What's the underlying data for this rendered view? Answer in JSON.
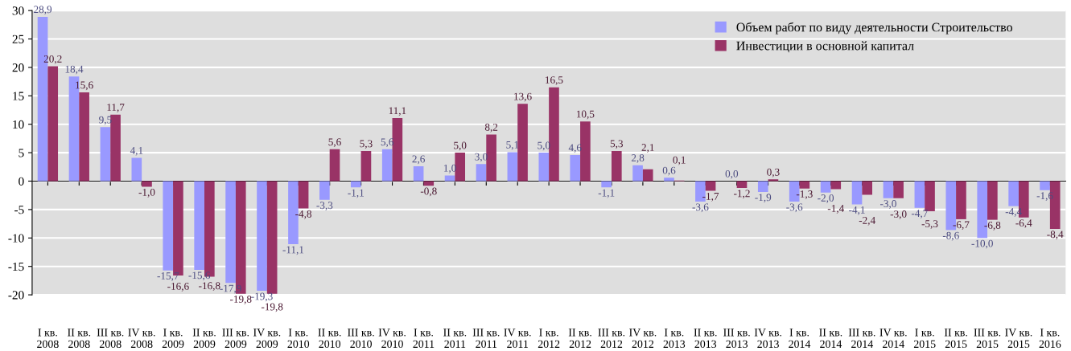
{
  "chart_data": {
    "type": "bar",
    "categories": [
      "I кв.\n2008",
      "II кв.\n2008",
      "III кв.\n2008",
      "IV кв.\n2008",
      "I кв.\n2009",
      "II кв.\n2009",
      "III кв.\n2009",
      "IV кв.\n2009",
      "I кв.\n2010",
      "II кв.\n2010",
      "III кв.\n2010",
      "IV кв.\n2010",
      "I кв.\n2011",
      "II кв.\n2011",
      "III кв.\n2011",
      "IV кв.\n2011",
      "I кв.\n2012",
      "II кв.\n2012",
      "III кв.\n2012",
      "IV кв.\n2012",
      "I кв.\n2013",
      "II кв.\n2013",
      "III кв.\n2013",
      "IV кв.\n2013",
      "I кв.\n2014",
      "II кв.\n2014",
      "III кв.\n2014",
      "IV кв.\n2014",
      "I кв.\n2015",
      "II кв.\n2015",
      "III кв.\n2015",
      "IV кв.\n2015",
      "I кв.\n2016"
    ],
    "series": [
      {
        "name": "Объем работ по виду деятельности Строительство",
        "color": "#9999ff",
        "values": [
          28.9,
          18.4,
          9.5,
          4.1,
          -15.7,
          -15.6,
          -17.9,
          -19.3,
          -11.1,
          -3.3,
          -1.1,
          5.6,
          2.6,
          1.0,
          3.0,
          5.1,
          5.0,
          4.6,
          -1.1,
          2.8,
          0.6,
          -3.6,
          0.0,
          -1.9,
          -3.6,
          -2.0,
          -4.1,
          -3.0,
          -4.7,
          -8.6,
          -10.0,
          -4.4,
          -1.6
        ],
        "value_labels": [
          "28,9",
          "18,4",
          "9,5",
          "4,1",
          "-15,7",
          "-15,6",
          "-17,9",
          "-19,3",
          "-11,1",
          "-3,3",
          "-1,1",
          "5,6",
          "2,6",
          "1,0",
          "3,0",
          "5,1",
          "5,0",
          "4,6",
          "-1,1",
          "2,8",
          "0,6",
          "-3,6",
          "0,0",
          "-1,9",
          "-3,6",
          "-2,0",
          "-4,1",
          "-3,0",
          "-4,7",
          "-8,6",
          "-10,0",
          "-4,4",
          "-1,6"
        ]
      },
      {
        "name": "Инвестиции в основной капитал",
        "color": "#993366",
        "values": [
          20.2,
          15.6,
          11.7,
          -1.0,
          -16.6,
          -16.8,
          -19.8,
          -19.8,
          -4.8,
          5.6,
          5.3,
          11.1,
          -0.8,
          5.0,
          8.2,
          13.6,
          16.5,
          10.5,
          5.3,
          2.1,
          0.1,
          -1.7,
          -1.2,
          0.3,
          -1.3,
          -1.4,
          -2.4,
          -3.0,
          -5.3,
          -6.7,
          -6.8,
          -6.4,
          -8.4
        ],
        "value_labels": [
          "20,2",
          "15,6",
          "11,7",
          "-1,0",
          "-16,6",
          "-16,8",
          "-19,8",
          "-19,8",
          "-4,8",
          "5,6",
          "5,3",
          "11,1",
          "-0,8",
          "5,0",
          "8,2",
          "13,6",
          "16,5",
          "10,5",
          "5,3",
          "2,1",
          "0,1",
          "-1,7",
          "-1,2",
          "0,3",
          "-1,3",
          "-1,4",
          "-2,4",
          "-3,0",
          "-5,3",
          "-6,7",
          "-6,8",
          "-6,4",
          "-8,4"
        ]
      }
    ],
    "ylim": [
      -20,
      30
    ],
    "yticks": [
      -20,
      -15,
      -10,
      -5,
      0,
      5,
      10,
      15,
      20,
      25,
      30
    ],
    "grid": "y",
    "legend": "top right"
  }
}
